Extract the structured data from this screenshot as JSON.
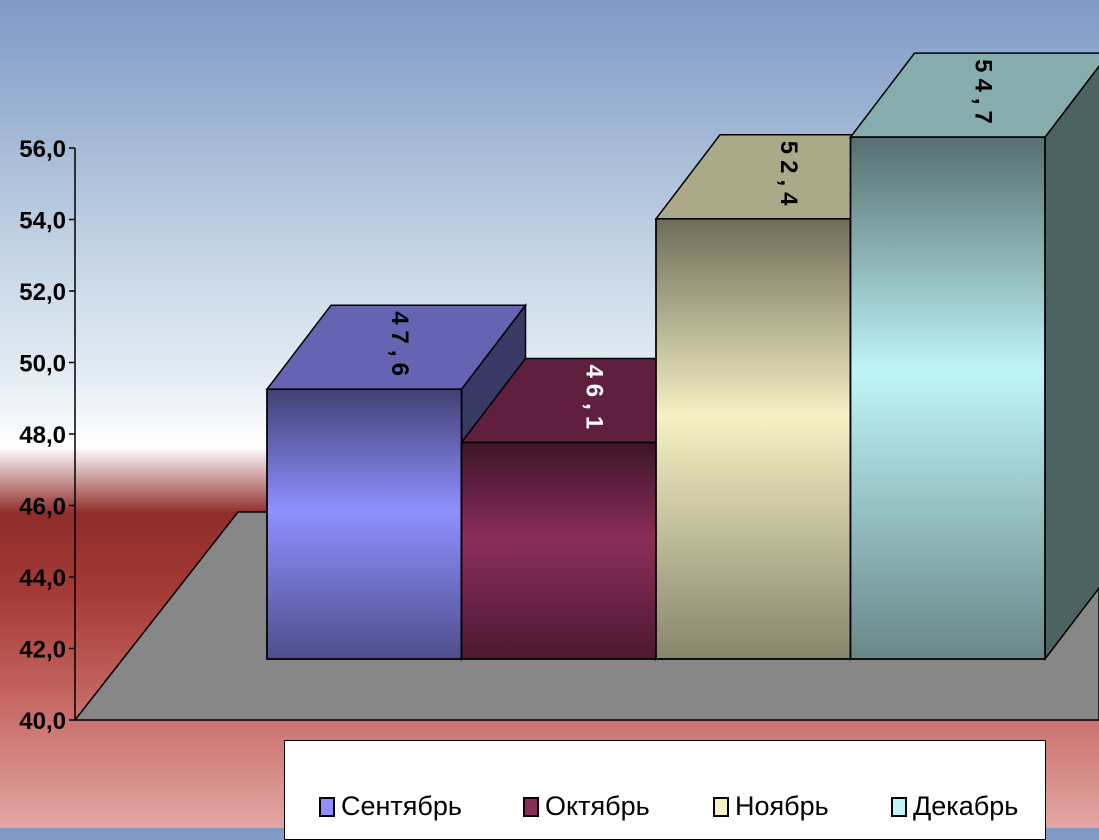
{
  "chart_data": {
    "type": "bar",
    "style": "3d",
    "categories": [
      "Сентябрь",
      "Октябрь",
      "Ноябрь",
      "Декабрь"
    ],
    "values": [
      47.6,
      46.1,
      52.4,
      54.7
    ],
    "value_labels": [
      "47,6",
      "46,1",
      "52,4",
      "54,7"
    ],
    "y_ticks": [
      "40,0",
      "42,0",
      "44,0",
      "46,0",
      "48,0",
      "50,0",
      "52,0",
      "54,0",
      "56,0"
    ],
    "ylim": [
      40,
      56
    ],
    "title": "",
    "xlabel": "",
    "ylabel": "",
    "legend_position": "bottom",
    "grid": false,
    "colors": [
      "#8f8fff",
      "#8a2d5a",
      "#f5f1c4",
      "#bff5f8"
    ],
    "label_colors": [
      "#000000",
      "#ffffff",
      "#000000",
      "#000000"
    ]
  }
}
